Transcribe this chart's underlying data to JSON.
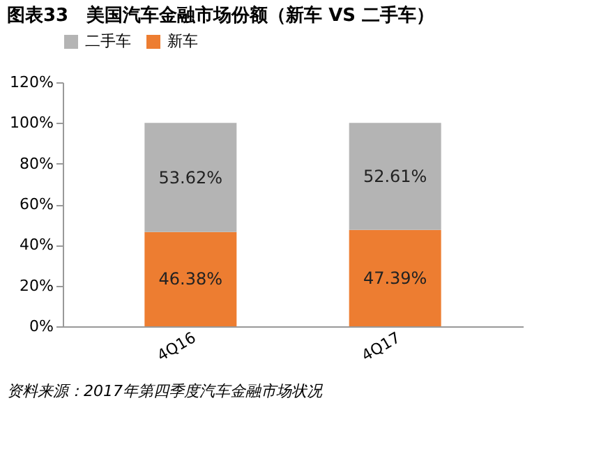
{
  "chart_data": {
    "type": "bar",
    "title": "图表33　美国汽车金融市场份额（新车 VS 二手车）",
    "categories": [
      "4Q16",
      "4Q17"
    ],
    "stacked": true,
    "series": [
      {
        "name": "新车",
        "color": "#ed7d31",
        "values": [
          46.38,
          47.39
        ],
        "value_labels": [
          "46.38%",
          "47.39%"
        ]
      },
      {
        "name": "二手车",
        "color": "#b4b4b4",
        "values": [
          53.62,
          52.61
        ],
        "value_labels": [
          "53.62%",
          "52.61%"
        ]
      }
    ],
    "ylim": [
      0,
      120
    ],
    "yticks": [
      {
        "value": 0,
        "label": "0%"
      },
      {
        "value": 20,
        "label": "20%"
      },
      {
        "value": 40,
        "label": "40%"
      },
      {
        "value": 60,
        "label": "60%"
      },
      {
        "value": 80,
        "label": "80%"
      },
      {
        "value": 100,
        "label": "100%"
      },
      {
        "value": 120,
        "label": "120%"
      }
    ],
    "legend": "top",
    "grid": false,
    "annotations": [
      "资料来源：2017年第四季度汽车金融市场状况"
    ]
  }
}
